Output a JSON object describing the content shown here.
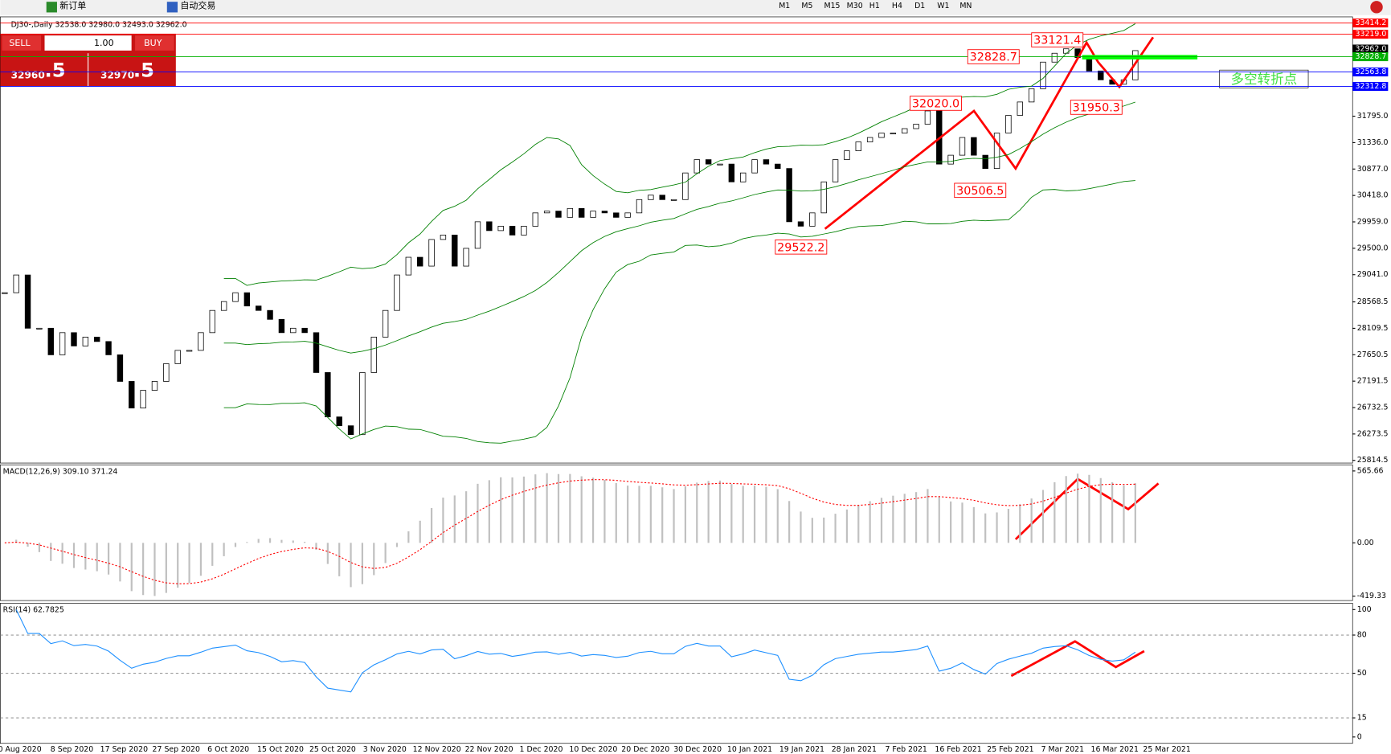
{
  "toolbar": {
    "new_order": "新订单",
    "auto_trading": "自动交易",
    "timeframes": [
      "M1",
      "M5",
      "M15",
      "M30",
      "H1",
      "H4",
      "D1",
      "W1",
      "MN"
    ]
  },
  "trade_panel": {
    "sell": "SELL",
    "lot": "1.00",
    "buy": "BUY",
    "sell_big": "32960",
    "sell_pip": ".5",
    "buy_big": "32970",
    "buy_pip": ".5"
  },
  "chart_data": [
    {
      "type": "candlestick",
      "title": "DJ30-,Daily  32538.0 32980.0 32493.0 32962.0",
      "values": [
        28728,
        29036,
        28111,
        28111,
        27649,
        28034,
        27803,
        27957,
        27880,
        27649,
        27187,
        26724,
        27032,
        27187,
        27495,
        27726,
        27726,
        28034,
        28420,
        28574,
        28728,
        28497,
        28420,
        28265,
        28034,
        28111,
        28034,
        27341,
        26570,
        26416,
        26262,
        27341,
        27957,
        28420,
        29036,
        29344,
        29190,
        29653,
        29730,
        29190,
        29499,
        29961,
        29807,
        29884,
        29730,
        29884,
        30115,
        30146,
        30038,
        30192,
        30038,
        30146,
        30115,
        30038,
        30115,
        30346,
        30423,
        30346,
        30346,
        30809,
        31040,
        30963,
        30963,
        30654,
        30809,
        31040,
        30963,
        30886,
        29961,
        29884,
        30115,
        30654,
        31040,
        31194,
        31348,
        31425,
        31502,
        31502,
        31579,
        31656,
        31887,
        30963,
        31117,
        31425,
        31117,
        30886,
        31502,
        31810,
        32042,
        32273,
        32735,
        32889,
        32966,
        32812,
        32581,
        32427,
        32350,
        32427,
        32935
      ],
      "x_labels": [
        "0 Aug 2020",
        "8 Sep 2020",
        "17 Sep 2020",
        "27 Sep 2020",
        "6 Oct 2020",
        "15 Oct 2020",
        "25 Oct 2020",
        "3 Nov 2020",
        "12 Nov 2020",
        "22 Nov 2020",
        "1 Dec 2020",
        "10 Dec 2020",
        "20 Dec 2020",
        "30 Dec 2020",
        "10 Jan 2021",
        "19 Jan 2021",
        "28 Jan 2021",
        "7 Feb 2021",
        "16 Feb 2021",
        "25 Feb 2021",
        "7 Mar 2021",
        "16 Mar 2021",
        "25 Mar 2021"
      ],
      "ylim": [
        25783.7,
        33475
      ],
      "yticks": [
        {
          "value": 31795,
          "label": "31795.0"
        },
        {
          "value": 31336,
          "label": "31336.0"
        },
        {
          "value": 30877,
          "label": "30877.0"
        },
        {
          "value": 30418,
          "label": "30418.0"
        },
        {
          "value": 29959,
          "label": "29959.0"
        },
        {
          "value": 29500,
          "label": "29500.0"
        },
        {
          "value": 29041,
          "label": "29041.0"
        },
        28568.5,
        28109.5,
        27650.5,
        27191.5,
        26732.5,
        26273.5,
        25814.5
      ],
      "price_levels": [
        {
          "value": 33414.2,
          "color": "#ff0000"
        },
        {
          "value": 33219,
          "label": "33219.0",
          "color": "#ff0000"
        },
        {
          "value": 32962,
          "label": "32962.0",
          "color": "#000000"
        },
        {
          "value": 32828.7,
          "color": "#00b000"
        },
        {
          "value": 32563.8,
          "color": "#0000ff"
        },
        {
          "value": 32312.8,
          "color": "#0000ff"
        }
      ],
      "annotations": [
        33121.4,
        32828.7,
        {
          "value": 32020,
          "label": "32020.0"
        },
        31950.3,
        30506.5,
        29522.2
      ],
      "note_text": "多空转折点",
      "up_color": "#ffffff",
      "down_color": "#000000",
      "band_color": "#008000"
    },
    {
      "type": "macd",
      "title": "MACD(12,26,9) 309.10 371.24",
      "ylim": [
        -454,
        614
      ],
      "yticks": [
        565.66,
        {
          "value": 0,
          "label": "0.00"
        },
        -419.33
      ],
      "color": "#c0c0c0",
      "signal_color": "#ff0000"
    },
    {
      "type": "rsi",
      "title": "RSI(14) 62.7825",
      "ylim": [
        -5,
        105
      ],
      "yticks": [
        100,
        80,
        50,
        15,
        0
      ],
      "color": "#1e90ff"
    }
  ]
}
